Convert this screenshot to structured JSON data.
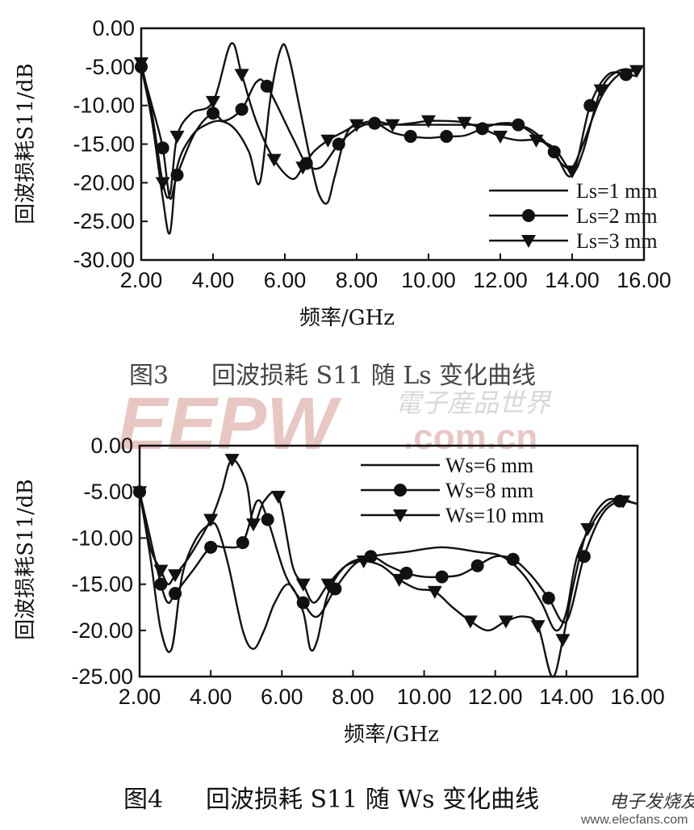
{
  "watermark": {
    "logo": "EEPW",
    "domain": ".com.cn",
    "chinese": "電子産品世界",
    "site_zh": "电子发烧友",
    "site": "www.elecfans.com"
  },
  "chart_data": [
    {
      "type": "line",
      "figure_label": "图3",
      "caption": "回波损耗 S11 随 Ls 变化曲线",
      "xlabel": "频率/GHz",
      "ylabel": "回波损耗S11/dB",
      "xlim": [
        2,
        16
      ],
      "ylim": [
        -30,
        0
      ],
      "xticks": [
        "2.00",
        "4.00",
        "6.00",
        "8.00",
        "10.00",
        "12.00",
        "14.00",
        "16.00"
      ],
      "yticks": [
        "0.00",
        "-5.00",
        "-10.00",
        "-15.00",
        "-20.00",
        "-25.00",
        "-30.00"
      ],
      "grid": false,
      "legend_position": "bottom-right",
      "series": [
        {
          "name": "Ls=1 mm",
          "marker": "none",
          "x": [
            2.0,
            2.3,
            2.6,
            2.8,
            3.0,
            3.4,
            3.8,
            4.2,
            4.6,
            5.0,
            5.3,
            5.6,
            5.9,
            6.1,
            6.4,
            6.8,
            7.0,
            7.2,
            7.4,
            7.8,
            8.5,
            9.5,
            10.5,
            11.5,
            12.2,
            12.8,
            13.3,
            13.7,
            14.0,
            14.3,
            14.8,
            15.3,
            15.8
          ],
          "y": [
            -5,
            -12,
            -22,
            -26.5,
            -18,
            -14,
            -12.5,
            -12,
            -13,
            -16,
            -20,
            -9,
            -2.5,
            -3.5,
            -10,
            -19,
            -22,
            -22.5,
            -19,
            -13,
            -12.5,
            -12.5,
            -12.5,
            -12.5,
            -12.5,
            -13,
            -15,
            -17.5,
            -18,
            -15,
            -9,
            -6,
            -5.5
          ]
        },
        {
          "name": "Ls=2 mm",
          "marker": "circle",
          "x": [
            2.0,
            2.3,
            2.6,
            2.8,
            3.0,
            3.5,
            4.0,
            4.3,
            4.8,
            5.2,
            5.5,
            6.2,
            6.6,
            7.0,
            7.5,
            8.0,
            8.5,
            9.0,
            9.5,
            10.0,
            10.5,
            11.0,
            11.5,
            12.0,
            12.5,
            13.0,
            13.5,
            14.0,
            14.5,
            15.0,
            15.5,
            15.8
          ],
          "y": [
            -5,
            -10,
            -15.5,
            -22,
            -19,
            -13.5,
            -11,
            -12,
            -10.5,
            -7,
            -7.5,
            -14,
            -17.5,
            -18,
            -15,
            -13,
            -12.3,
            -13.5,
            -14,
            -14.2,
            -14,
            -13.9,
            -13,
            -12.3,
            -12.5,
            -14,
            -16,
            -19,
            -10,
            -6,
            -6,
            -6.2
          ]
        },
        {
          "name": "Ls=3 mm",
          "marker": "triangle",
          "x": [
            2.0,
            2.3,
            2.6,
            2.8,
            3.0,
            3.4,
            4.0,
            4.5,
            4.8,
            5.2,
            5.7,
            6.2,
            6.5,
            6.8,
            7.2,
            7.6,
            8.0,
            8.5,
            9.0,
            9.5,
            10.0,
            10.5,
            11.0,
            11.5,
            12.0,
            12.5,
            13.0,
            13.5,
            14.0,
            14.3,
            14.8,
            15.3,
            15.8
          ],
          "y": [
            -4.5,
            -11,
            -20,
            -21.5,
            -14,
            -11,
            -9.5,
            -2,
            -6,
            -12,
            -17,
            -19.5,
            -18,
            -16,
            -14.5,
            -13.5,
            -12.5,
            -12,
            -12.5,
            -12.3,
            -12,
            -12,
            -12.2,
            -13,
            -14,
            -14.5,
            -14.5,
            -15.5,
            -18.5,
            -16,
            -8,
            -5.5,
            -5.5
          ]
        }
      ]
    },
    {
      "type": "line",
      "figure_label": "图4",
      "caption": "回波损耗 S11 随 Ws 变化曲线",
      "xlabel": "频率/GHz",
      "ylabel": "回波损耗S11/dB",
      "xlim": [
        2,
        16
      ],
      "ylim": [
        -25,
        0
      ],
      "xticks": [
        "2.00",
        "4.00",
        "6.00",
        "8.00",
        "10.00",
        "12.00",
        "14.00",
        "16.00"
      ],
      "yticks": [
        "0.00",
        "-5.00",
        "-10.00",
        "-15.00",
        "-20.00",
        "-25.00"
      ],
      "grid": false,
      "legend_position": "top-right",
      "series": [
        {
          "name": "Ws=6 mm",
          "marker": "none",
          "x": [
            2.0,
            2.3,
            2.6,
            2.9,
            3.2,
            3.6,
            4.0,
            4.2,
            4.5,
            4.9,
            5.2,
            5.5,
            5.8,
            6.2,
            6.6,
            6.8,
            7.0,
            7.3,
            7.8,
            8.5,
            9.5,
            10.5,
            11.5,
            12.2,
            12.8,
            13.3,
            13.7,
            14.0,
            14.3,
            14.8,
            15.3,
            15.8
          ],
          "y": [
            -5,
            -12,
            -20,
            -22,
            -14,
            -10,
            -8.5,
            -9,
            -13,
            -20,
            -22,
            -20,
            -17,
            -15,
            -18,
            -22,
            -21,
            -16,
            -13,
            -12,
            -11.5,
            -11,
            -11.5,
            -12,
            -14,
            -17,
            -20,
            -18,
            -12,
            -8,
            -6,
            -6
          ]
        },
        {
          "name": "Ws=8 mm",
          "marker": "circle",
          "x": [
            2.0,
            2.3,
            2.6,
            2.8,
            3.0,
            3.5,
            4.0,
            4.4,
            4.9,
            5.3,
            5.6,
            6.1,
            6.6,
            7.0,
            7.5,
            8.0,
            8.5,
            9.0,
            9.5,
            10.0,
            10.5,
            11.0,
            11.5,
            12.0,
            12.5,
            13.0,
            13.5,
            14.0,
            14.5,
            15.0,
            15.5,
            16.0
          ],
          "y": [
            -5,
            -10,
            -15,
            -17,
            -16,
            -13.5,
            -11,
            -11,
            -10.5,
            -6,
            -8,
            -14,
            -17,
            -18.5,
            -15.5,
            -13,
            -12,
            -13,
            -13.8,
            -14.2,
            -14.2,
            -14,
            -13,
            -12,
            -12.3,
            -14,
            -16.5,
            -19,
            -12,
            -7.5,
            -6,
            -6.3
          ]
        },
        {
          "name": "Ws=10 mm",
          "marker": "triangle",
          "x": [
            2.0,
            2.3,
            2.6,
            2.8,
            3.0,
            3.4,
            4.0,
            4.3,
            4.6,
            5.0,
            5.2,
            5.5,
            5.9,
            6.3,
            6.6,
            6.9,
            7.3,
            7.8,
            8.3,
            8.8,
            9.3,
            9.8,
            10.3,
            10.8,
            11.3,
            11.8,
            12.3,
            12.8,
            13.2,
            13.6,
            13.9,
            14.2,
            14.6,
            15.1,
            15.6,
            16.0
          ],
          "y": [
            -5,
            -11,
            -13.5,
            -15,
            -14,
            -12,
            -8,
            -5,
            -1.5,
            -4,
            -8.5,
            -6,
            -5.5,
            -13,
            -15,
            -17,
            -15,
            -13,
            -12.5,
            -13,
            -14.5,
            -15.5,
            -15.8,
            -17.5,
            -19,
            -20,
            -19,
            -18.5,
            -19.5,
            -25,
            -21,
            -15,
            -9,
            -6,
            -6,
            -6.3
          ]
        }
      ]
    }
  ]
}
